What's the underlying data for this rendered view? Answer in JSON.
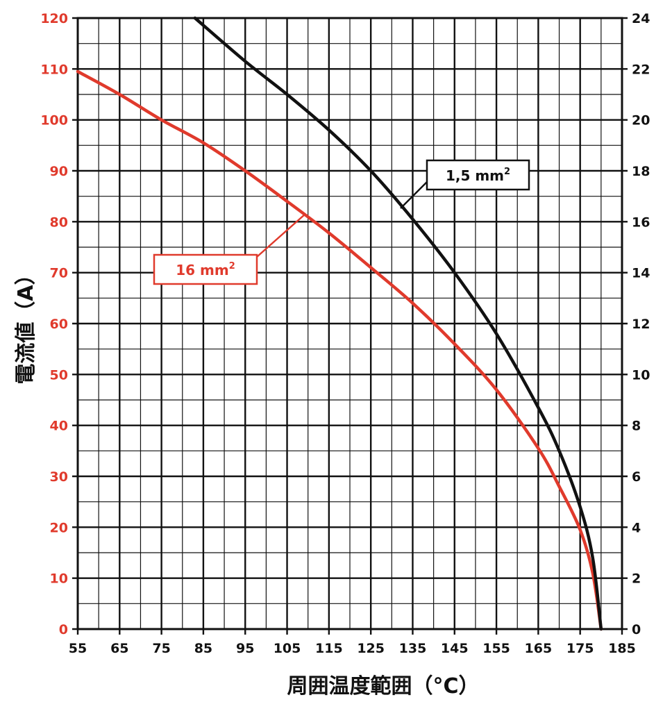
{
  "chart_data": {
    "type": "line",
    "xlabel": "周囲温度範囲（°C）",
    "ylabel": "電流値（A）",
    "xlim": [
      55,
      185
    ],
    "ylim": [
      0,
      120
    ],
    "y2lim": [
      0,
      24
    ],
    "x_ticks": [
      "55",
      "65",
      "75",
      "85",
      "95",
      "105",
      "115",
      "125",
      "135",
      "145",
      "155",
      "165",
      "175",
      "185"
    ],
    "y_ticks": [
      "0",
      "10",
      "20",
      "30",
      "40",
      "50",
      "60",
      "70",
      "80",
      "90",
      "100",
      "110",
      "120"
    ],
    "y2_ticks": [
      "0",
      "2",
      "4",
      "6",
      "8",
      "10",
      "12",
      "14",
      "16",
      "18",
      "20",
      "22",
      "24"
    ],
    "grid": true,
    "colors": {
      "left_axis": "#e03a2c",
      "right_axis": "#111111",
      "grid": "#111111"
    },
    "series": [
      {
        "name": "16 mm",
        "name_superscript": "2",
        "axis": "left",
        "color": "#e03a2c",
        "x": [
          55,
          65,
          75,
          85,
          95,
          105,
          115,
          125,
          135,
          145,
          155,
          165,
          170,
          175,
          178,
          180
        ],
        "y": [
          109.5,
          105,
          100,
          95.5,
          90,
          84,
          77.8,
          71,
          64,
          56,
          47,
          35.5,
          28,
          19.5,
          11,
          0
        ]
      },
      {
        "name": "1,5 mm",
        "name_superscript": "2",
        "axis": "right",
        "color": "#111111",
        "x": [
          83,
          95,
          105,
          115,
          125,
          135,
          145,
          155,
          165,
          170,
          175,
          178,
          180
        ],
        "y": [
          24,
          22.3,
          21,
          19.6,
          18,
          16.1,
          14,
          11.6,
          8.7,
          7,
          4.8,
          2.8,
          0
        ]
      }
    ]
  }
}
